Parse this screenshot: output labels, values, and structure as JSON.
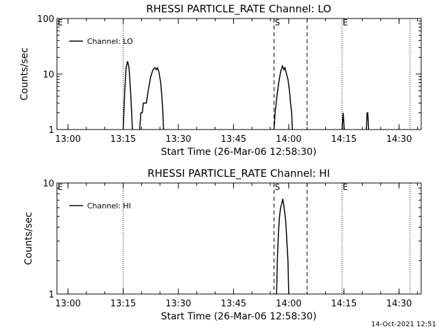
{
  "timestamp": "14-Oct-2021 12:51",
  "chart_data": [
    {
      "type": "line",
      "title": "RHESSI PARTICLE_RATE Channel: LO",
      "xlabel": "Start Time (26-Mar-06 12:58:30)",
      "ylabel": "Counts/sec",
      "yscale": "log",
      "ylim": [
        1,
        100
      ],
      "yticks": [
        1,
        10,
        100
      ],
      "xlim": [
        -1.5,
        97.5
      ],
      "xticks": [
        {
          "t": 1.5,
          "label": "13:00"
        },
        {
          "t": 16.5,
          "label": "13:15"
        },
        {
          "t": 31.5,
          "label": "13:30"
        },
        {
          "t": 46.5,
          "label": "13:45"
        },
        {
          "t": 61.5,
          "label": "14:00"
        },
        {
          "t": 76.5,
          "label": "14:15"
        },
        {
          "t": 91.5,
          "label": "14:30"
        }
      ],
      "grid": false,
      "legend_position": "top-left",
      "series": [
        {
          "name": "Channel: LO",
          "color": "#000000",
          "segments": [
            [
              [
                16.5,
                1
              ],
              [
                16.7,
                2
              ],
              [
                17.0,
                6
              ],
              [
                17.3,
                13
              ],
              [
                17.7,
                17
              ],
              [
                18.1,
                13
              ],
              [
                18.5,
                5
              ],
              [
                18.8,
                2
              ],
              [
                19.0,
                1
              ]
            ],
            [
              [
                21.0,
                1
              ],
              [
                21.3,
                2
              ],
              [
                21.7,
                2
              ],
              [
                22.0,
                3
              ],
              [
                22.8,
                3
              ],
              [
                23.1,
                4
              ],
              [
                23.5,
                6
              ],
              [
                24.0,
                9
              ],
              [
                24.6,
                12
              ],
              [
                25.1,
                13
              ],
              [
                25.5,
                12
              ],
              [
                25.8,
                13
              ],
              [
                26.2,
                11
              ],
              [
                26.7,
                7
              ],
              [
                27.0,
                4
              ],
              [
                27.3,
                2
              ],
              [
                27.5,
                1
              ]
            ],
            [
              [
                57.5,
                1
              ],
              [
                57.8,
                2
              ],
              [
                58.3,
                4
              ],
              [
                58.8,
                7
              ],
              [
                59.3,
                11
              ],
              [
                59.8,
                14
              ],
              [
                60.2,
                12
              ],
              [
                60.5,
                13
              ],
              [
                60.9,
                10
              ],
              [
                61.3,
                8
              ],
              [
                61.7,
                5
              ],
              [
                62.0,
                3
              ],
              [
                62.3,
                2
              ],
              [
                62.5,
                1
              ]
            ],
            [
              [
                76.0,
                1
              ],
              [
                76.3,
                2
              ],
              [
                76.6,
                1
              ]
            ],
            [
              [
                82.6,
                1
              ],
              [
                82.8,
                2
              ],
              [
                83.0,
                2
              ],
              [
                83.2,
                1
              ]
            ]
          ]
        }
      ],
      "annotations": [
        {
          "t": 16.5,
          "label": "",
          "line": "dotted"
        },
        {
          "t": 57.5,
          "label": "S",
          "line": "dashed"
        },
        {
          "t": 66.5,
          "label": "",
          "line": "dashed"
        },
        {
          "t": 76.0,
          "label": "E",
          "line": "dotted"
        },
        {
          "t": 94.5,
          "label": "",
          "line": "dotted"
        },
        {
          "t": -1.5,
          "label": "E",
          "line": "none"
        }
      ]
    },
    {
      "type": "line",
      "title": "RHESSI PARTICLE_RATE Channel: HI",
      "xlabel": "Start Time (26-Mar-06 12:58:30)",
      "ylabel": "Counts/sec",
      "yscale": "log",
      "ylim": [
        1,
        10
      ],
      "yticks": [
        1,
        10
      ],
      "xlim": [
        -1.5,
        97.5
      ],
      "xticks": [
        {
          "t": 1.5,
          "label": "13:00"
        },
        {
          "t": 16.5,
          "label": "13:15"
        },
        {
          "t": 31.5,
          "label": "13:30"
        },
        {
          "t": 46.5,
          "label": "13:45"
        },
        {
          "t": 61.5,
          "label": "14:00"
        },
        {
          "t": 76.5,
          "label": "14:15"
        },
        {
          "t": 91.5,
          "label": "14:30"
        }
      ],
      "grid": false,
      "legend_position": "top-left",
      "series": [
        {
          "name": "Channel: HI",
          "color": "#000000",
          "segments": [
            [
              [
                58.2,
                1
              ],
              [
                58.4,
                2
              ],
              [
                58.7,
                3.5
              ],
              [
                59.0,
                5
              ],
              [
                59.3,
                6
              ],
              [
                59.6,
                6.5
              ],
              [
                59.9,
                7.2
              ],
              [
                60.1,
                6.5
              ],
              [
                60.4,
                5.5
              ],
              [
                60.7,
                4.5
              ],
              [
                61.0,
                3
              ],
              [
                61.3,
                2
              ],
              [
                61.5,
                1
              ]
            ]
          ]
        }
      ],
      "annotations": [
        {
          "t": 16.5,
          "label": "",
          "line": "dotted"
        },
        {
          "t": 57.5,
          "label": "S",
          "line": "dashed"
        },
        {
          "t": 66.5,
          "label": "",
          "line": "dashed"
        },
        {
          "t": 76.0,
          "label": "E",
          "line": "dotted"
        },
        {
          "t": 94.5,
          "label": "",
          "line": "dotted"
        },
        {
          "t": -1.5,
          "label": "E",
          "line": "none"
        }
      ]
    }
  ]
}
